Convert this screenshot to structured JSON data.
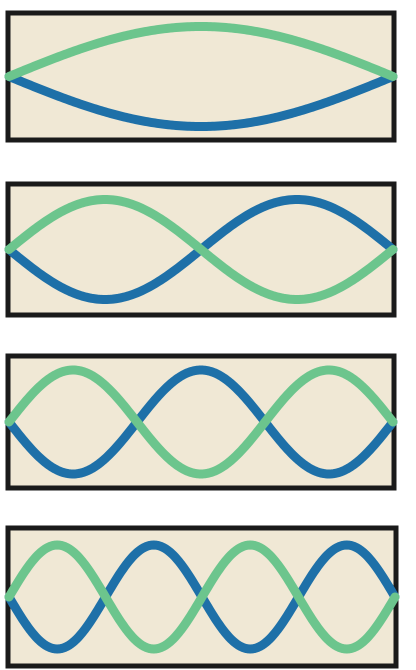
{
  "colors": {
    "background": "#F0E8D5",
    "frame": "#1A1A1A",
    "wave_a": "#6CC58D",
    "wave_b": "#1E70A8"
  },
  "modes": [
    {
      "harmonic": 1
    },
    {
      "harmonic": 2
    },
    {
      "harmonic": 3
    },
    {
      "harmonic": 4
    }
  ]
}
